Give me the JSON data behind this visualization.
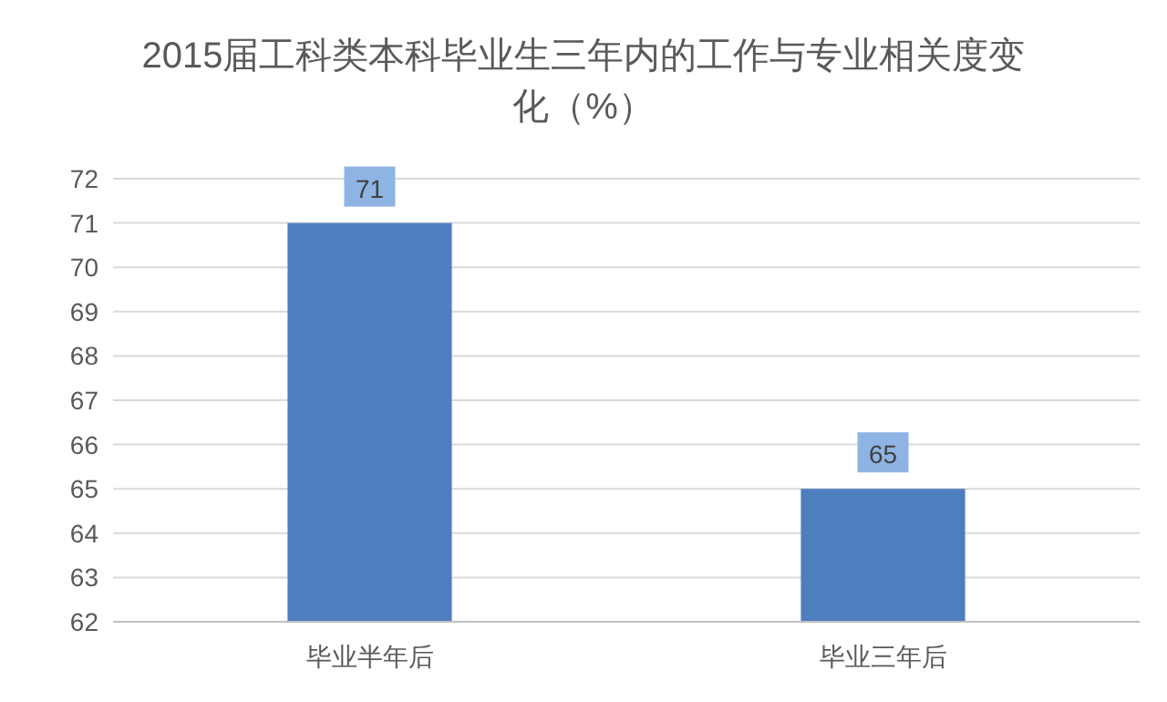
{
  "chart_data": {
    "type": "bar",
    "title": "2015届工科类本科毕业生三年内的工作与专业相关度变化（%）",
    "categories": [
      "毕业半年后",
      "毕业三年后"
    ],
    "values": [
      71,
      65
    ],
    "color": "#4f7ebf",
    "ylim": [
      62,
      72
    ],
    "yticks": [
      62,
      63,
      64,
      65,
      66,
      67,
      68,
      69,
      70,
      71,
      72
    ],
    "grid": "y",
    "data_labels": true
  }
}
